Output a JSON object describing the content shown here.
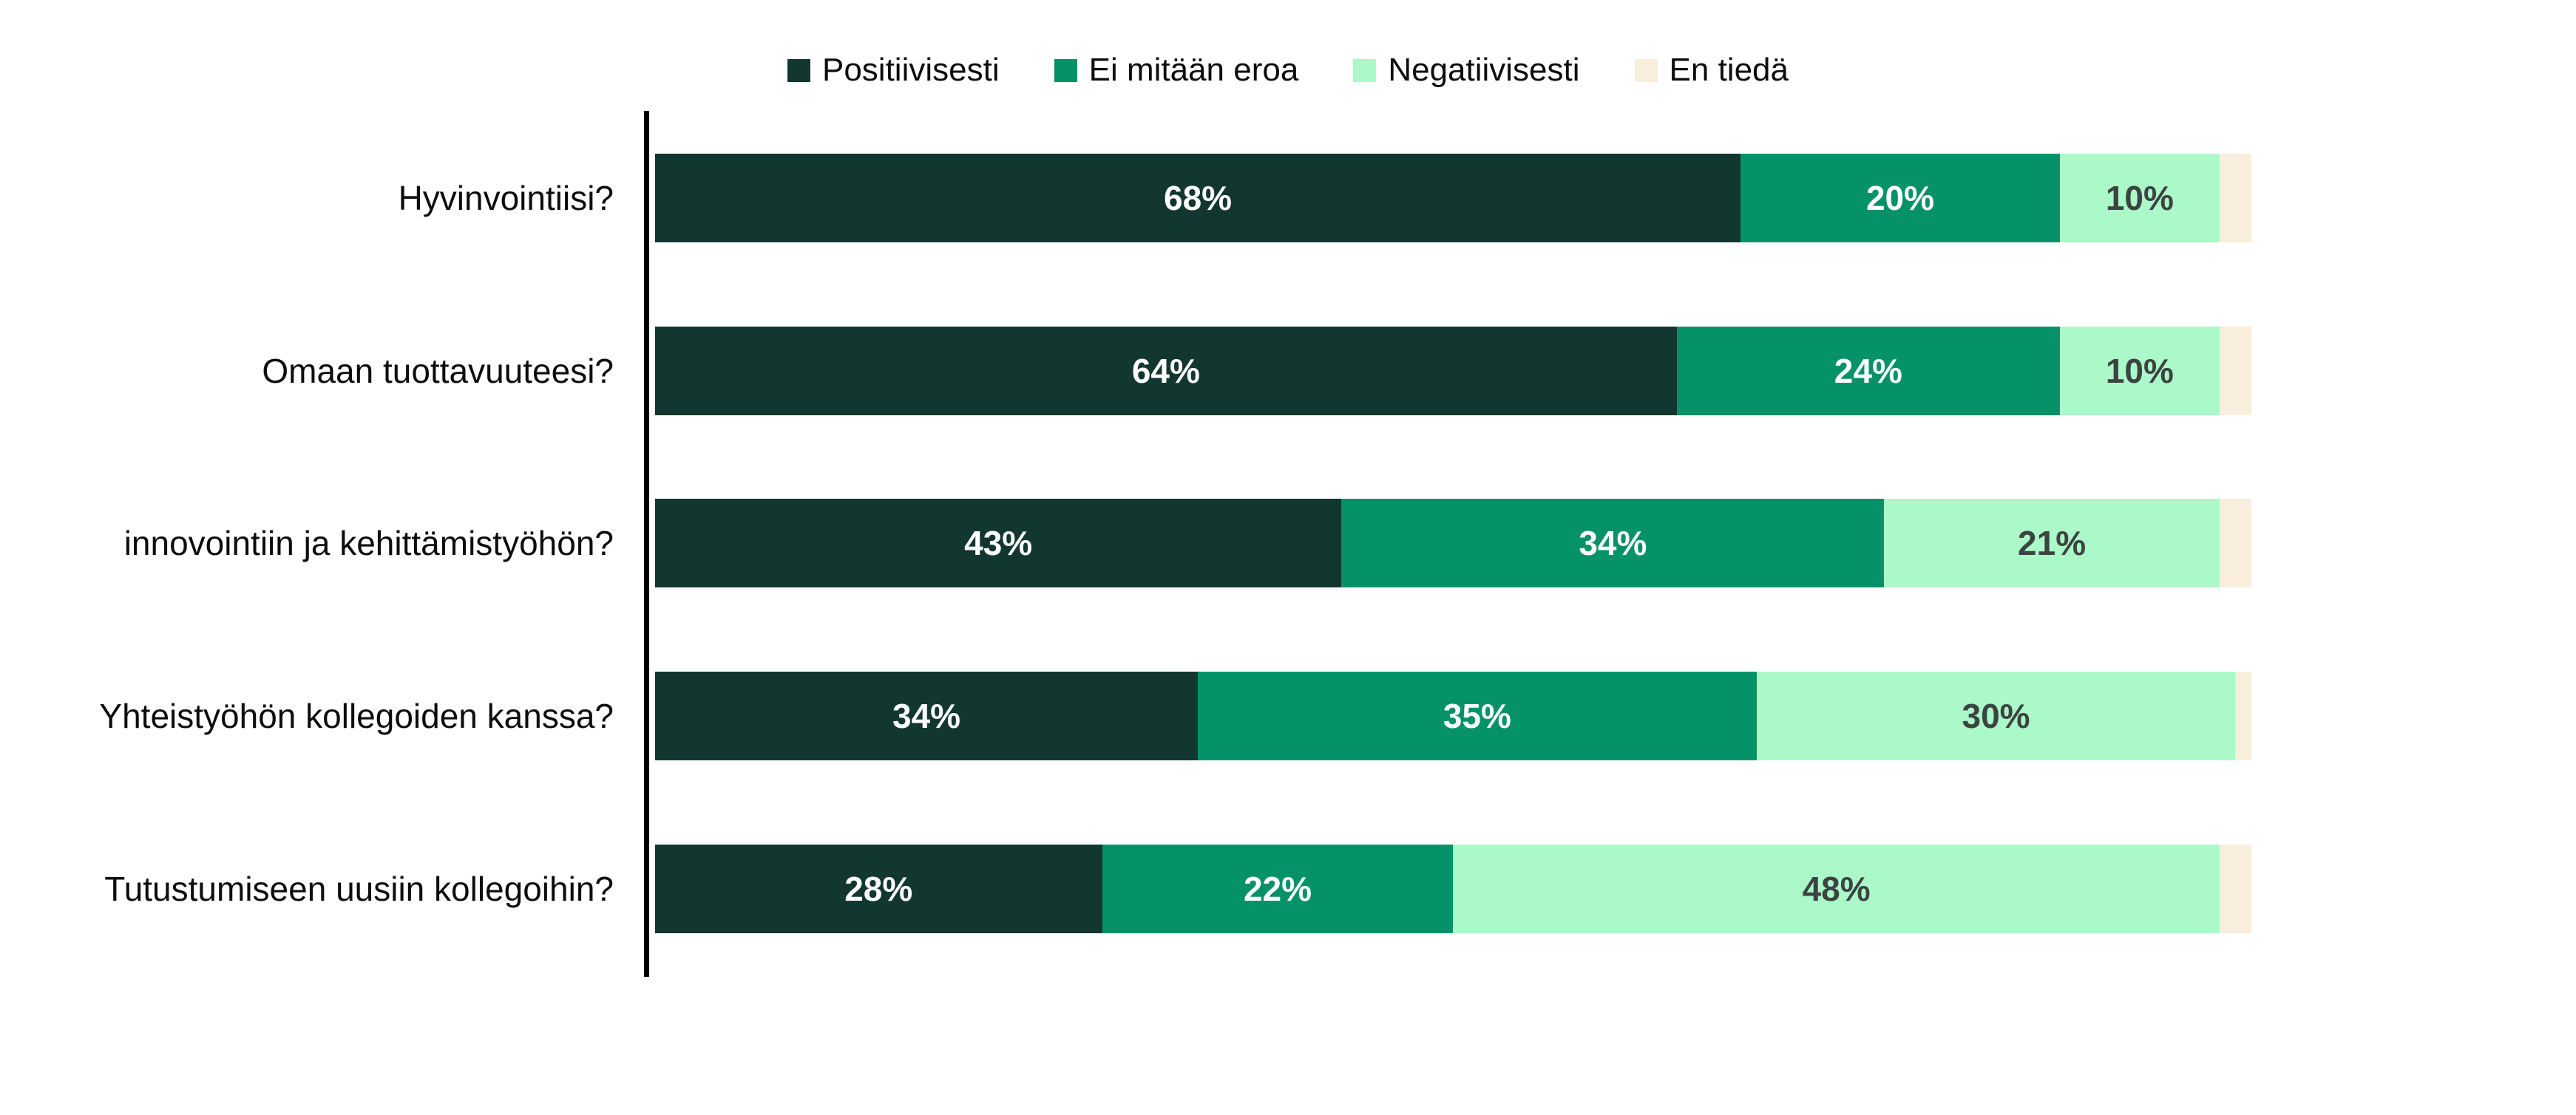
{
  "page": {
    "background_color": "#ffffff",
    "axis_color": "#000000",
    "label_text_color": "#0d0d0d"
  },
  "chart_data": {
    "type": "bar",
    "orientation": "horizontal",
    "stacked": true,
    "title": "",
    "xlabel": "",
    "ylabel": "",
    "xlim": [
      0,
      100
    ],
    "grid": false,
    "legend_position": "top-center",
    "value_suffix": "%",
    "categories": [
      "Hyvinvointiisi?",
      "Omaan tuottavuuteesi?",
      "innovointiin ja kehittämistyöhön?",
      "Yhteistyöhön kollegoiden kanssa?",
      "Tutustumiseen uusiin kollegoihin?"
    ],
    "series": [
      {
        "name": "Positiivisesti",
        "color": "#123730",
        "label_color": "#ffffff",
        "labels_shown": true,
        "values": [
          68,
          64,
          43,
          34,
          28
        ]
      },
      {
        "name": "Ei mitään eroa",
        "color": "#059269",
        "label_color": "#ffffff",
        "labels_shown": true,
        "values": [
          20,
          24,
          34,
          35,
          22
        ]
      },
      {
        "name": "Negatiivisesti",
        "color": "#ABF8C8",
        "label_color": "#3C4441",
        "labels_shown": true,
        "values": [
          10,
          10,
          21,
          30,
          48
        ]
      },
      {
        "name": "En tiedä",
        "color": "#F8EEDB",
        "label_color": "#3C4441",
        "labels_shown": false,
        "values": [
          2,
          2,
          2,
          1,
          2
        ]
      }
    ]
  }
}
